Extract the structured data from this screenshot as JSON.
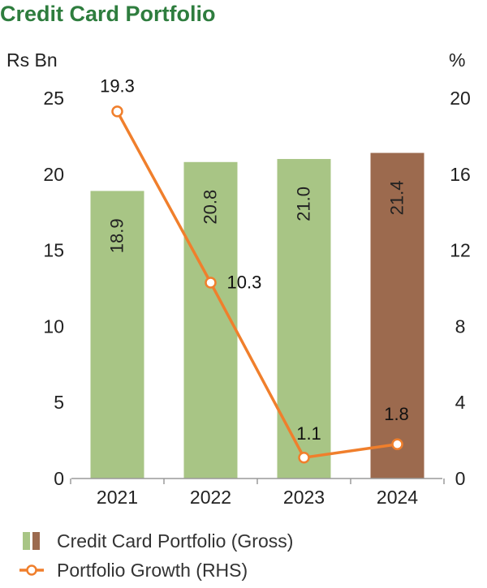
{
  "chart_data": {
    "type": "bar",
    "title": "Credit Card Portfolio",
    "categories": [
      "2021",
      "2022",
      "2023",
      "2024"
    ],
    "left_axis": {
      "unit": "Rs Bn",
      "ylim": [
        0,
        25
      ],
      "ticks": [
        "0",
        "5",
        "10",
        "15",
        "20",
        "25"
      ]
    },
    "right_axis": {
      "unit": "%",
      "ylim": [
        0,
        20
      ],
      "ticks": [
        "0",
        "4",
        "8",
        "12",
        "16",
        "20"
      ]
    },
    "series": [
      {
        "name": "Credit Card Portfolio (Gross)",
        "type": "bar",
        "axis": "left",
        "values": [
          18.9,
          20.8,
          21.0,
          21.4
        ],
        "labels": [
          "18.9",
          "20.8",
          "21.0",
          "21.4"
        ],
        "colors": [
          "#a8c585",
          "#a8c585",
          "#a8c585",
          "#9c6a4e"
        ]
      },
      {
        "name": "Portfolio Growth (RHS)",
        "type": "line",
        "axis": "right",
        "values": [
          19.3,
          10.3,
          1.1,
          1.8
        ],
        "labels": [
          "19.3",
          "10.3",
          "1.1",
          "1.8"
        ],
        "color": "#f07f2c"
      }
    ],
    "grid": false,
    "legend_position": "bottom-left"
  },
  "colors": {
    "title": "#2e7d3e",
    "bar_primary": "#a8c585",
    "bar_highlight": "#9c6a4e",
    "line": "#f07f2c",
    "axis": "#9a9a9a"
  }
}
